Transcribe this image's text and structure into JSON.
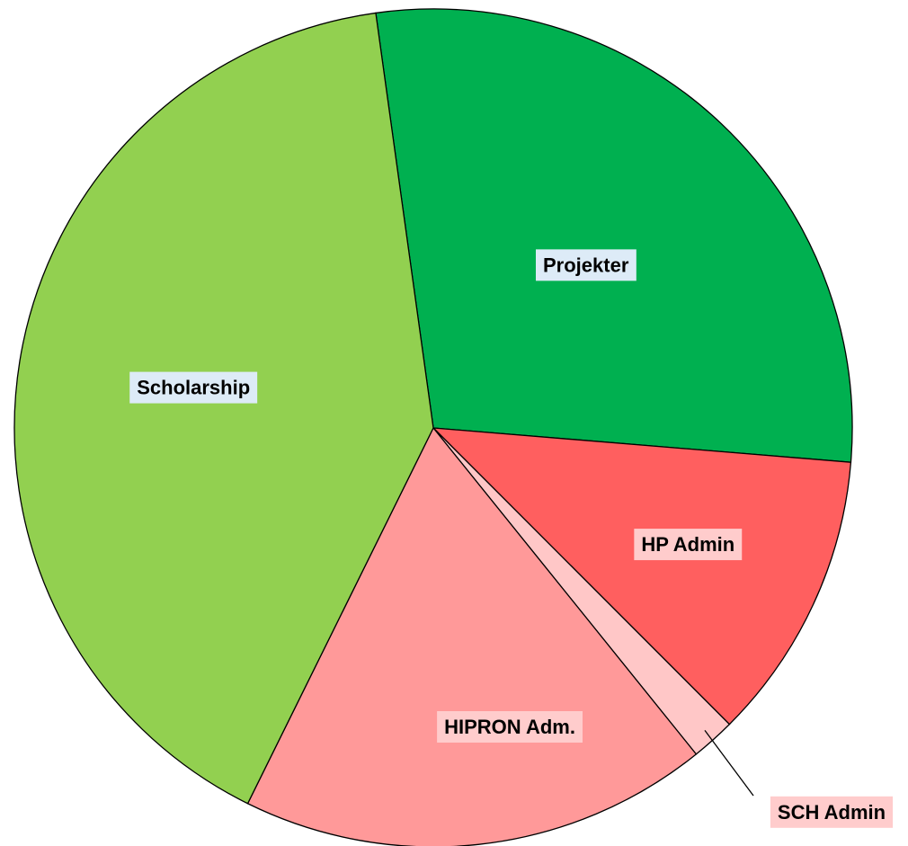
{
  "chart_data": {
    "type": "pie",
    "categories": [
      "Projekter",
      "HP Admin",
      "SCH Admin",
      "HIPRON Adm.",
      "Scholarship"
    ],
    "values": [
      28.5,
      11.2,
      1.7,
      18.1,
      40.5
    ],
    "colors": [
      "#00b050",
      "#ff5f5f",
      "#ffc7c7",
      "#ff9999",
      "#92d050"
    ],
    "label_backgrounds": [
      "#ddebf7",
      "#ffcccc",
      "#ffcccc",
      "#ffcccc",
      "#ddebf7"
    ]
  }
}
